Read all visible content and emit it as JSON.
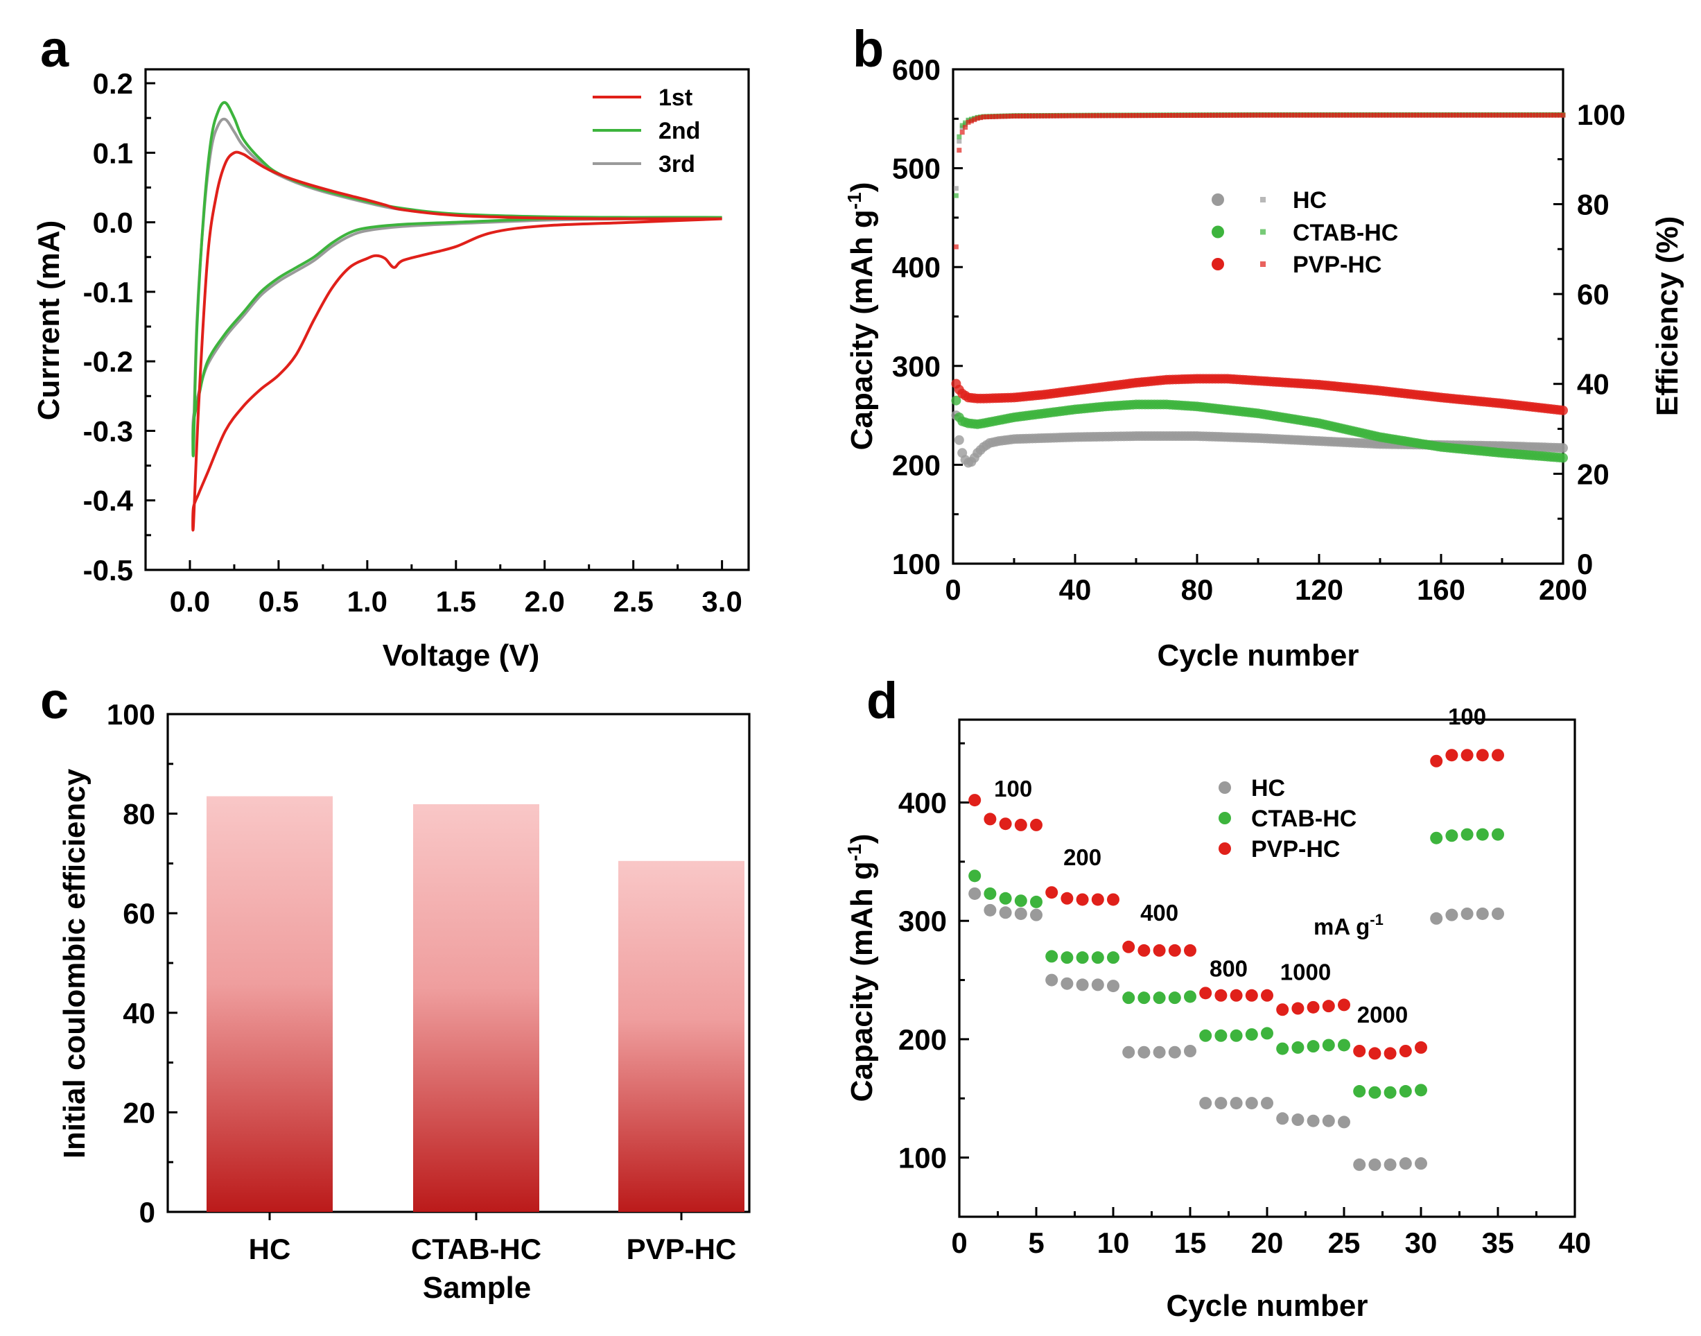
{
  "colors": {
    "red": "#e0201a",
    "green": "#3db43d",
    "gray": "#9a9a9a",
    "bar_top": "#f9c7c7",
    "bar_bottom": "#bb1a1a"
  },
  "chart_data": [
    {
      "panel": "a",
      "type": "line",
      "xlabel": "Voltage (V)",
      "ylabel": "Currrent (mA)",
      "xlim": [
        -0.25,
        3.15
      ],
      "ylim": [
        -0.5,
        0.22
      ],
      "xticks": [
        0.0,
        0.5,
        1.0,
        1.5,
        2.0,
        2.5,
        3.0
      ],
      "xtick_labels": [
        "0.0",
        "0.5",
        "1.0",
        "1.5",
        "2.0",
        "2.5",
        "3.0"
      ],
      "yticks": [
        -0.5,
        -0.4,
        -0.3,
        -0.2,
        -0.1,
        0.0,
        0.1,
        0.2
      ],
      "ytick_labels": [
        "-0.5",
        "-0.4",
        "-0.3",
        "-0.2",
        "-0.1",
        "0.0",
        "0.1",
        "0.2"
      ],
      "legend": [
        "1st",
        "2nd",
        "3rd"
      ],
      "series": [
        {
          "name": "1st",
          "color": "red",
          "x": [
            3.0,
            2.5,
            2.0,
            1.7,
            1.5,
            1.35,
            1.2,
            1.15,
            1.1,
            1.05,
            1.0,
            0.9,
            0.8,
            0.7,
            0.6,
            0.5,
            0.4,
            0.3,
            0.2,
            0.1,
            0.05,
            0.02,
            0.02,
            0.05,
            0.1,
            0.15,
            0.2,
            0.25,
            0.3,
            0.35,
            0.45,
            0.6,
            0.8,
            1.0,
            1.1,
            1.2,
            1.5,
            2.0,
            2.5,
            3.0
          ],
          "y": [
            0.005,
            0.0,
            -0.005,
            -0.015,
            -0.035,
            -0.045,
            -0.055,
            -0.065,
            -0.052,
            -0.048,
            -0.052,
            -0.065,
            -0.095,
            -0.14,
            -0.19,
            -0.22,
            -0.24,
            -0.265,
            -0.3,
            -0.36,
            -0.39,
            -0.41,
            -0.435,
            -0.26,
            -0.05,
            0.04,
            0.085,
            0.1,
            0.098,
            0.09,
            0.075,
            0.06,
            0.045,
            0.032,
            0.025,
            0.018,
            0.01,
            0.006,
            0.005,
            0.005
          ]
        },
        {
          "name": "2nd",
          "color": "green",
          "x": [
            3.0,
            2.5,
            2.0,
            1.5,
            1.2,
            1.0,
            0.9,
            0.8,
            0.7,
            0.6,
            0.5,
            0.4,
            0.3,
            0.2,
            0.1,
            0.05,
            0.02,
            0.02,
            0.04,
            0.08,
            0.12,
            0.16,
            0.2,
            0.25,
            0.3,
            0.4,
            0.5,
            0.7,
            1.0,
            1.2,
            1.5,
            2.0,
            2.5,
            3.0
          ],
          "y": [
            0.007,
            0.007,
            0.005,
            0.0,
            -0.003,
            -0.008,
            -0.015,
            -0.03,
            -0.05,
            -0.065,
            -0.08,
            -0.1,
            -0.13,
            -0.16,
            -0.2,
            -0.25,
            -0.29,
            -0.33,
            -0.15,
            0.02,
            0.12,
            0.16,
            0.172,
            0.15,
            0.12,
            0.09,
            0.07,
            0.05,
            0.03,
            0.02,
            0.012,
            0.008,
            0.007,
            0.007
          ]
        },
        {
          "name": "3rd",
          "color": "gray",
          "x": [
            3.0,
            2.5,
            2.0,
            1.5,
            1.2,
            1.0,
            0.9,
            0.8,
            0.7,
            0.6,
            0.5,
            0.4,
            0.3,
            0.2,
            0.1,
            0.05,
            0.02,
            0.02,
            0.04,
            0.08,
            0.12,
            0.16,
            0.2,
            0.25,
            0.3,
            0.4,
            0.5,
            0.7,
            1.0,
            1.2,
            1.5,
            2.0,
            2.5,
            3.0
          ],
          "y": [
            0.006,
            0.005,
            0.003,
            -0.002,
            -0.006,
            -0.012,
            -0.02,
            -0.035,
            -0.055,
            -0.07,
            -0.085,
            -0.105,
            -0.135,
            -0.165,
            -0.205,
            -0.245,
            -0.28,
            -0.31,
            -0.14,
            0.015,
            0.105,
            0.14,
            0.148,
            0.13,
            0.11,
            0.085,
            0.068,
            0.048,
            0.028,
            0.018,
            0.011,
            0.007,
            0.006,
            0.006
          ]
        }
      ]
    },
    {
      "panel": "b",
      "type": "scatter",
      "xlabel": "Cycle number",
      "ylabel": "Capacity (mAh g",
      "ylabel_sup": "-1",
      "ylabel_end": ")",
      "y2label": "Efficiency (%)",
      "xlim": [
        0,
        200
      ],
      "ylim": [
        100,
        600
      ],
      "y2lim": [
        0,
        110
      ],
      "xticks": [
        0,
        40,
        80,
        120,
        160,
        200
      ],
      "xtick_labels": [
        "0",
        "40",
        "80",
        "120",
        "160",
        "200"
      ],
      "yticks": [
        100,
        200,
        300,
        400,
        500,
        600
      ],
      "ytick_labels": [
        "100",
        "200",
        "300",
        "400",
        "500",
        "600"
      ],
      "y2ticks": [
        0,
        20,
        40,
        60,
        80,
        100
      ],
      "y2tick_labels": [
        "0",
        "20",
        "40",
        "60",
        "80",
        "100"
      ],
      "legend": [
        "HC",
        "CTAB-HC",
        "PVP-HC"
      ],
      "series": [
        {
          "name": "HC",
          "color": "gray",
          "axis": "capacity",
          "x": [
            1,
            2,
            3,
            4,
            5,
            6,
            7,
            8,
            10,
            12,
            15,
            20,
            30,
            40,
            60,
            80,
            100,
            120,
            140,
            160,
            180,
            200
          ],
          "y": [
            250,
            225,
            212,
            205,
            202,
            203,
            207,
            212,
            218,
            222,
            224,
            226,
            227,
            228,
            229,
            229,
            227,
            224,
            221,
            220,
            219,
            217
          ]
        },
        {
          "name": "CTAB-HC",
          "color": "green",
          "axis": "capacity",
          "x": [
            1,
            2,
            3,
            5,
            8,
            10,
            20,
            30,
            40,
            50,
            60,
            70,
            80,
            100,
            120,
            140,
            160,
            180,
            200
          ],
          "y": [
            265,
            248,
            244,
            242,
            241,
            242,
            248,
            252,
            256,
            259,
            261,
            261,
            259,
            252,
            242,
            228,
            218,
            212,
            207
          ]
        },
        {
          "name": "PVP-HC",
          "color": "red",
          "axis": "capacity",
          "x": [
            1,
            2,
            3,
            5,
            8,
            10,
            20,
            30,
            40,
            50,
            60,
            70,
            80,
            90,
            100,
            120,
            140,
            160,
            180,
            200
          ],
          "y": [
            282,
            276,
            272,
            268,
            267,
            267,
            268,
            271,
            275,
            279,
            283,
            286,
            287,
            287,
            285,
            281,
            275,
            268,
            262,
            255
          ]
        },
        {
          "name": "HC",
          "color": "gray",
          "axis": "efficiency",
          "x": [
            1,
            2,
            3,
            5,
            8,
            10,
            20,
            50,
            100,
            150,
            200
          ],
          "y": [
            83.5,
            94,
            97,
            98.5,
            99.2,
            99.4,
            99.6,
            99.7,
            99.8,
            99.8,
            99.8
          ]
        },
        {
          "name": "CTAB-HC",
          "color": "green",
          "axis": "efficiency",
          "x": [
            1,
            2,
            3,
            5,
            8,
            10,
            20,
            50,
            100,
            150,
            200
          ],
          "y": [
            81.9,
            95,
            97.5,
            98.7,
            99.3,
            99.5,
            99.7,
            99.8,
            99.9,
            99.9,
            99.9
          ]
        },
        {
          "name": "PVP-HC",
          "color": "red",
          "axis": "efficiency",
          "x": [
            1,
            2,
            3,
            5,
            8,
            10,
            20,
            50,
            100,
            150,
            200
          ],
          "y": [
            70.5,
            92,
            96,
            98.2,
            99.1,
            99.4,
            99.6,
            99.7,
            99.8,
            99.8,
            99.8
          ]
        }
      ]
    },
    {
      "panel": "c",
      "type": "bar",
      "xlabel": "Sample",
      "ylabel": "Initial coulombic efficiency",
      "ylim": [
        0,
        100
      ],
      "yticks": [
        0,
        20,
        40,
        60,
        80,
        100
      ],
      "ytick_labels": [
        "0",
        "20",
        "40",
        "60",
        "80",
        "100"
      ],
      "categories": [
        "HC",
        "CTAB-HC",
        "PVP-HC"
      ],
      "values": [
        83.5,
        81.9,
        70.5
      ]
    },
    {
      "panel": "d",
      "type": "scatter",
      "xlabel": "Cycle number",
      "ylabel": "Capacity (mAh g",
      "ylabel_sup": "-1",
      "ylabel_end": ")",
      "xlim": [
        0,
        40
      ],
      "ylim": [
        50,
        470
      ],
      "xticks": [
        0,
        5,
        10,
        15,
        20,
        25,
        30,
        35,
        40
      ],
      "xtick_labels": [
        "0",
        "5",
        "10",
        "15",
        "20",
        "25",
        "30",
        "35",
        "40"
      ],
      "yticks": [
        100,
        200,
        300,
        400
      ],
      "ytick_labels": [
        "100",
        "200",
        "300",
        "400"
      ],
      "legend": [
        "HC",
        "CTAB-HC",
        "PVP-HC"
      ],
      "unit_label": "mA g",
      "unit_sup": "-1",
      "annotations": [
        {
          "text": "100",
          "x": 3.5,
          "y": 405
        },
        {
          "text": "200",
          "x": 8,
          "y": 347
        },
        {
          "text": "400",
          "x": 13,
          "y": 300
        },
        {
          "text": "800",
          "x": 17.5,
          "y": 253
        },
        {
          "text": "1000",
          "x": 22.5,
          "y": 250
        },
        {
          "text": "2000",
          "x": 27.5,
          "y": 214
        },
        {
          "text": "100",
          "x": 33,
          "y": 466
        }
      ],
      "series": [
        {
          "name": "HC",
          "color": "gray",
          "x": [
            1,
            2,
            3,
            4,
            5,
            6,
            7,
            8,
            9,
            10,
            11,
            12,
            13,
            14,
            15,
            16,
            17,
            18,
            19,
            20,
            21,
            22,
            23,
            24,
            25,
            26,
            27,
            28,
            29,
            30,
            31,
            32,
            33,
            34,
            35
          ],
          "y": [
            323,
            309,
            307,
            306,
            305,
            250,
            247,
            246,
            246,
            245,
            189,
            189,
            189,
            189,
            190,
            146,
            146,
            146,
            146,
            146,
            133,
            132,
            131,
            131,
            130,
            94,
            94,
            94,
            95,
            95,
            302,
            305,
            306,
            306,
            306
          ]
        },
        {
          "name": "CTAB-HC",
          "color": "green",
          "x": [
            1,
            2,
            3,
            4,
            5,
            6,
            7,
            8,
            9,
            10,
            11,
            12,
            13,
            14,
            15,
            16,
            17,
            18,
            19,
            20,
            21,
            22,
            23,
            24,
            25,
            26,
            27,
            28,
            29,
            30,
            31,
            32,
            33,
            34,
            35
          ],
          "y": [
            338,
            323,
            319,
            317,
            316,
            270,
            269,
            269,
            269,
            269,
            235,
            235,
            235,
            235,
            236,
            203,
            203,
            203,
            204,
            205,
            192,
            193,
            194,
            195,
            195,
            156,
            155,
            155,
            156,
            157,
            370,
            372,
            373,
            373,
            373
          ]
        },
        {
          "name": "PVP-HC",
          "color": "red",
          "x": [
            1,
            2,
            3,
            4,
            5,
            6,
            7,
            8,
            9,
            10,
            11,
            12,
            13,
            14,
            15,
            16,
            17,
            18,
            19,
            20,
            21,
            22,
            23,
            24,
            25,
            26,
            27,
            28,
            29,
            30,
            31,
            32,
            33,
            34,
            35
          ],
          "y": [
            402,
            386,
            382,
            381,
            381,
            324,
            319,
            318,
            318,
            318,
            278,
            275,
            275,
            275,
            275,
            239,
            237,
            237,
            237,
            237,
            225,
            226,
            227,
            228,
            229,
            190,
            188,
            188,
            190,
            193,
            435,
            440,
            440,
            440,
            440
          ]
        }
      ]
    }
  ]
}
